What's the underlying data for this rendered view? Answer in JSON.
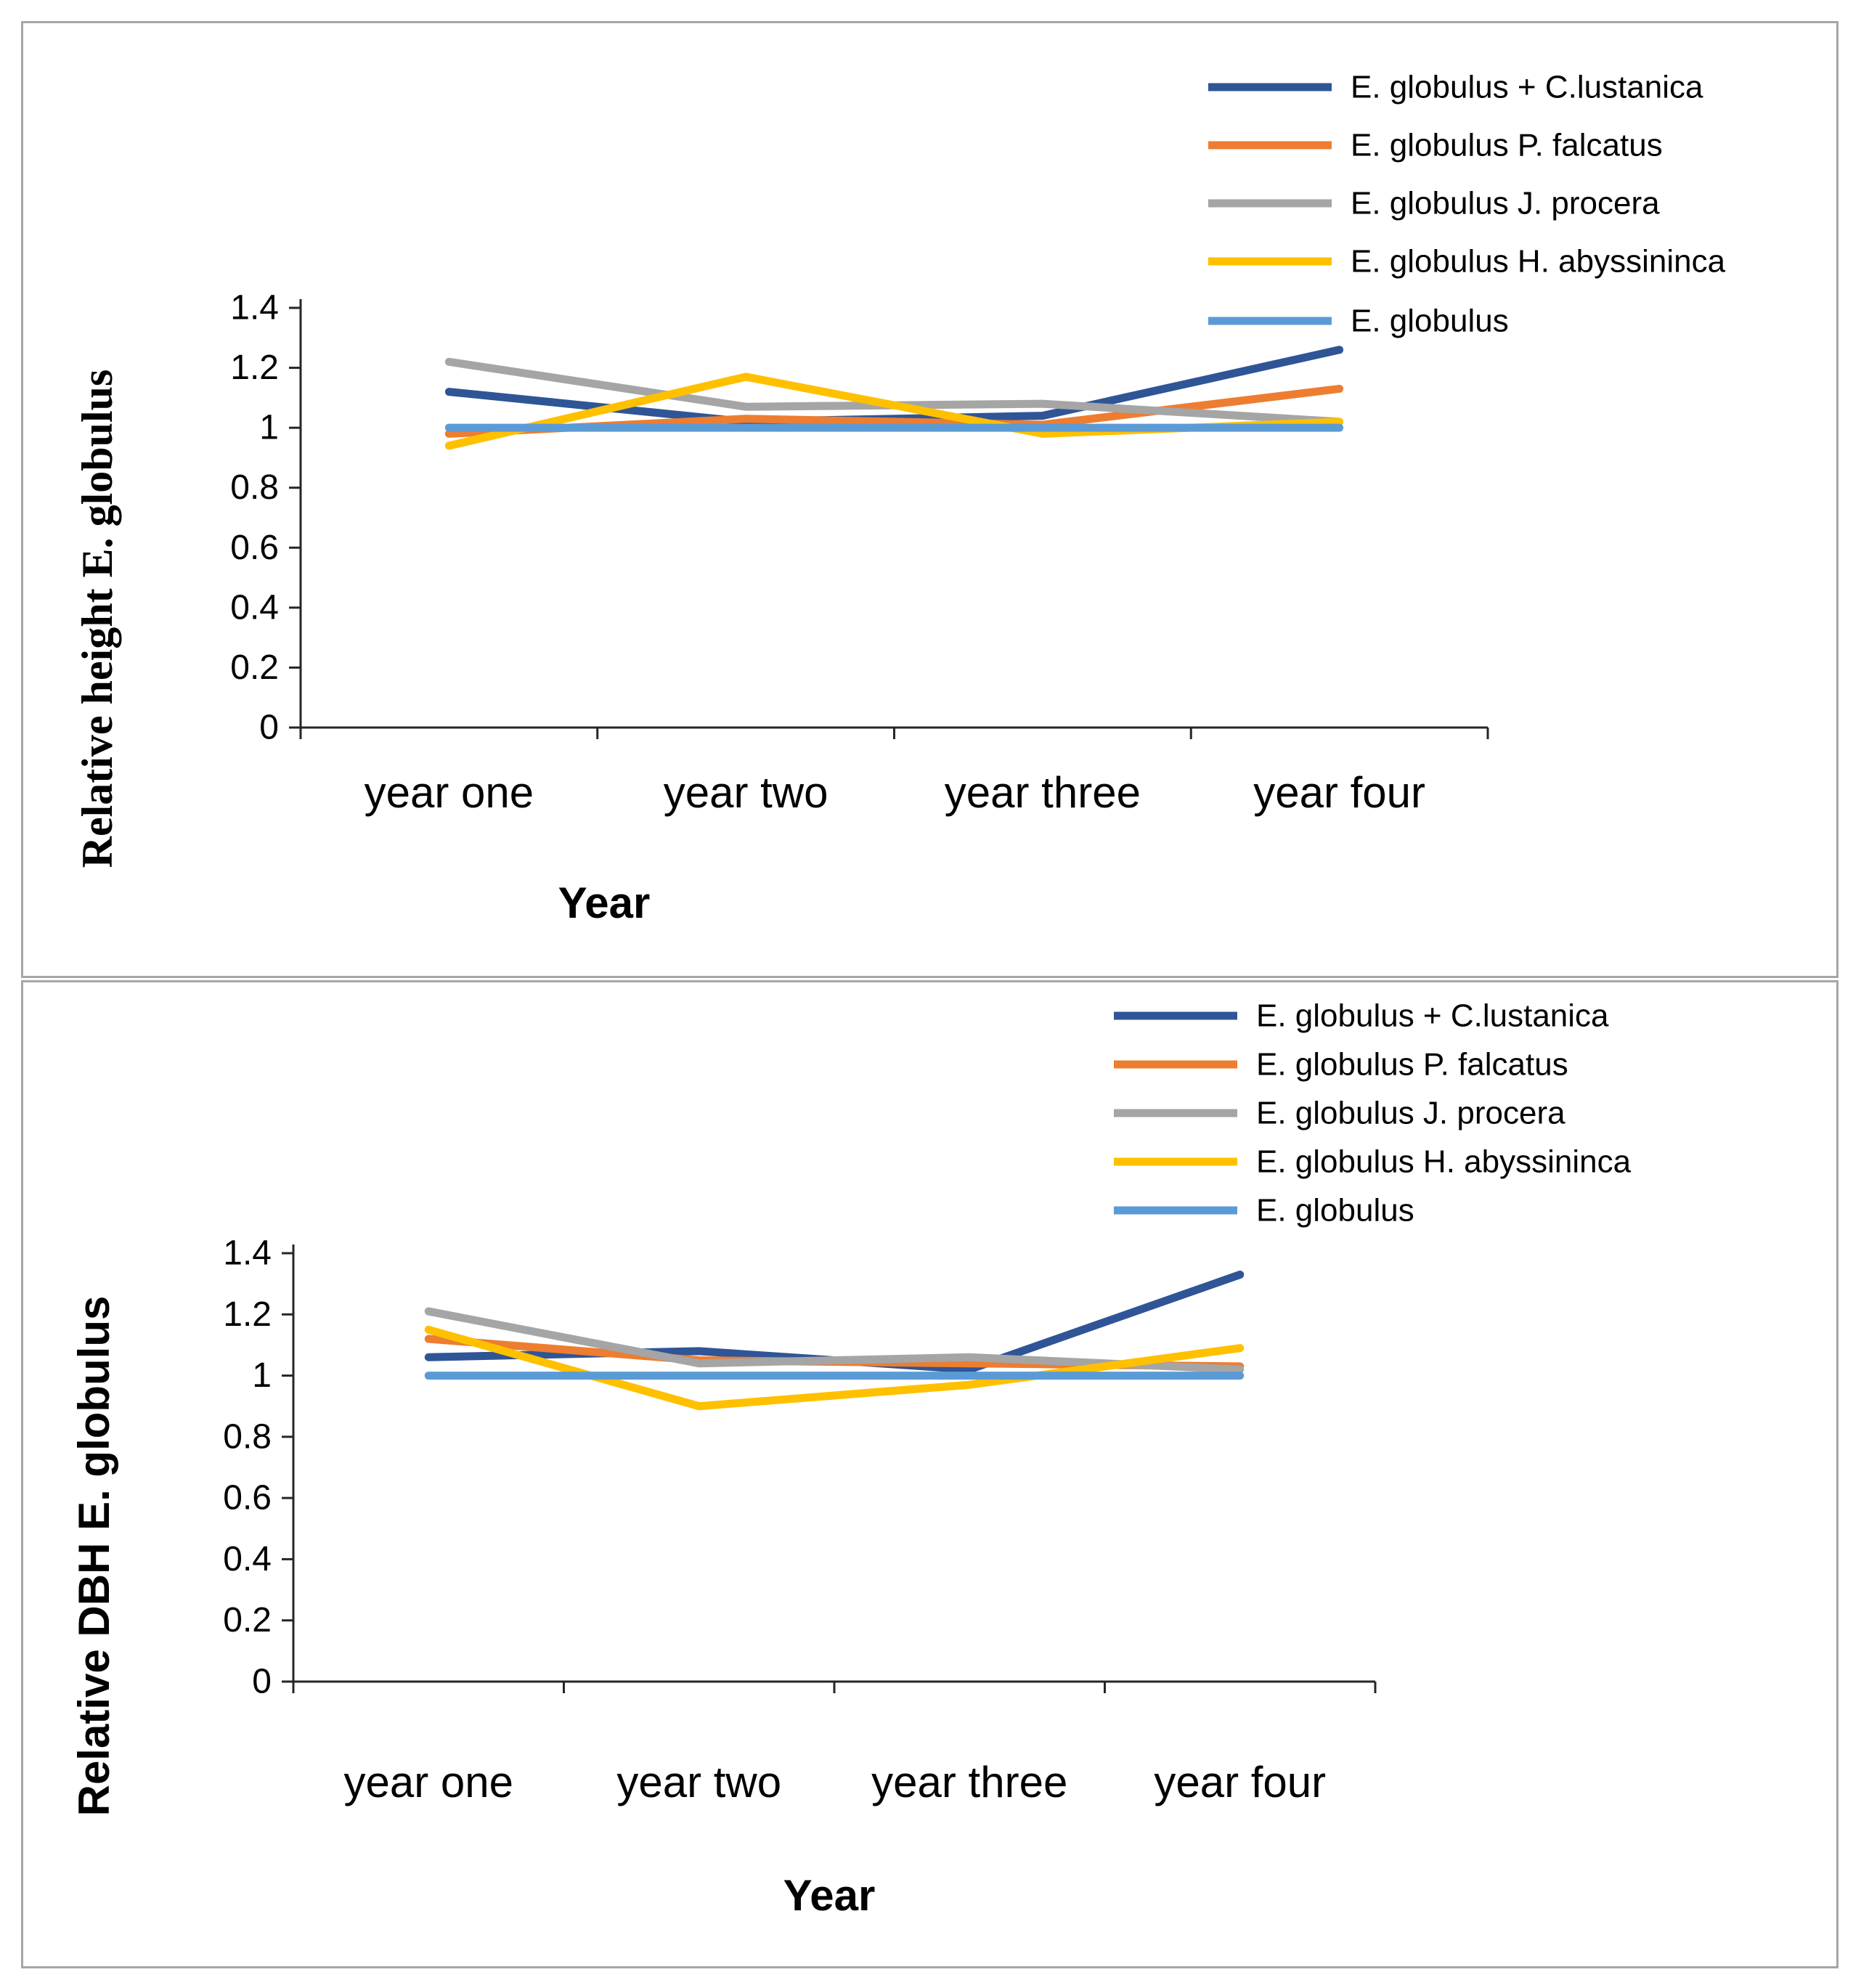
{
  "frame": {
    "border_color": "#a6a6a6",
    "background": "#ffffff",
    "text_color": "#000000",
    "axis_color": "#262626"
  },
  "chart_data": [
    {
      "type": "line",
      "title": "",
      "xlabel": "Year",
      "ylabel": "Relative height E. globulus",
      "categories": [
        "year one",
        "year two",
        "year three",
        "year four"
      ],
      "ylim": [
        0,
        1.4
      ],
      "ytick_step": 0.2,
      "ytick_labels": [
        "0",
        "0.2",
        "0.4",
        "0.6",
        "0.8",
        "1",
        "1.2",
        "1.4"
      ],
      "grid": false,
      "legend_position": "top-right",
      "series": [
        {
          "name": "E. globulus + C.lustanica",
          "color": "#2f5597",
          "values": [
            1.12,
            1.02,
            1.04,
            1.26
          ]
        },
        {
          "name": "E. globulus P. falcatus",
          "color": "#ed7d31",
          "values": [
            0.98,
            1.03,
            1.01,
            1.13
          ]
        },
        {
          "name": "E. globulus J. procera",
          "color": "#a5a5a5",
          "values": [
            1.22,
            1.07,
            1.08,
            1.02
          ]
        },
        {
          "name": "E. globulus H. abyssininca",
          "color": "#ffc000",
          "values": [
            0.94,
            1.17,
            0.98,
            1.02
          ]
        },
        {
          "name": "E. globulus",
          "color": "#5b9bd5",
          "values": [
            1.0,
            1.0,
            1.0,
            1.0
          ]
        }
      ]
    },
    {
      "type": "line",
      "title": "",
      "xlabel": "Year",
      "ylabel": "Relative  DBH E. globulus",
      "categories": [
        "year one",
        "year two",
        "year three",
        "year four"
      ],
      "ylim": [
        0,
        1.4
      ],
      "ytick_step": 0.2,
      "ytick_labels": [
        "0",
        "0.2",
        "0.4",
        "0.6",
        "0.8",
        "1",
        "1.2",
        "1.4"
      ],
      "grid": false,
      "legend_position": "top-right",
      "series": [
        {
          "name": "E. globulus + C.lustanica",
          "color": "#2f5597",
          "values": [
            1.06,
            1.08,
            1.02,
            1.33
          ]
        },
        {
          "name": "E. globulus P. falcatus",
          "color": "#ed7d31",
          "values": [
            1.12,
            1.05,
            1.04,
            1.03
          ]
        },
        {
          "name": "E. globulus J. procera",
          "color": "#a5a5a5",
          "values": [
            1.21,
            1.04,
            1.06,
            1.02
          ]
        },
        {
          "name": "E. globulus H. abyssininca",
          "color": "#ffc000",
          "values": [
            1.15,
            0.9,
            0.97,
            1.09
          ]
        },
        {
          "name": "E. globulus",
          "color": "#5b9bd5",
          "values": [
            1.0,
            1.0,
            1.0,
            1.0
          ]
        }
      ]
    }
  ]
}
